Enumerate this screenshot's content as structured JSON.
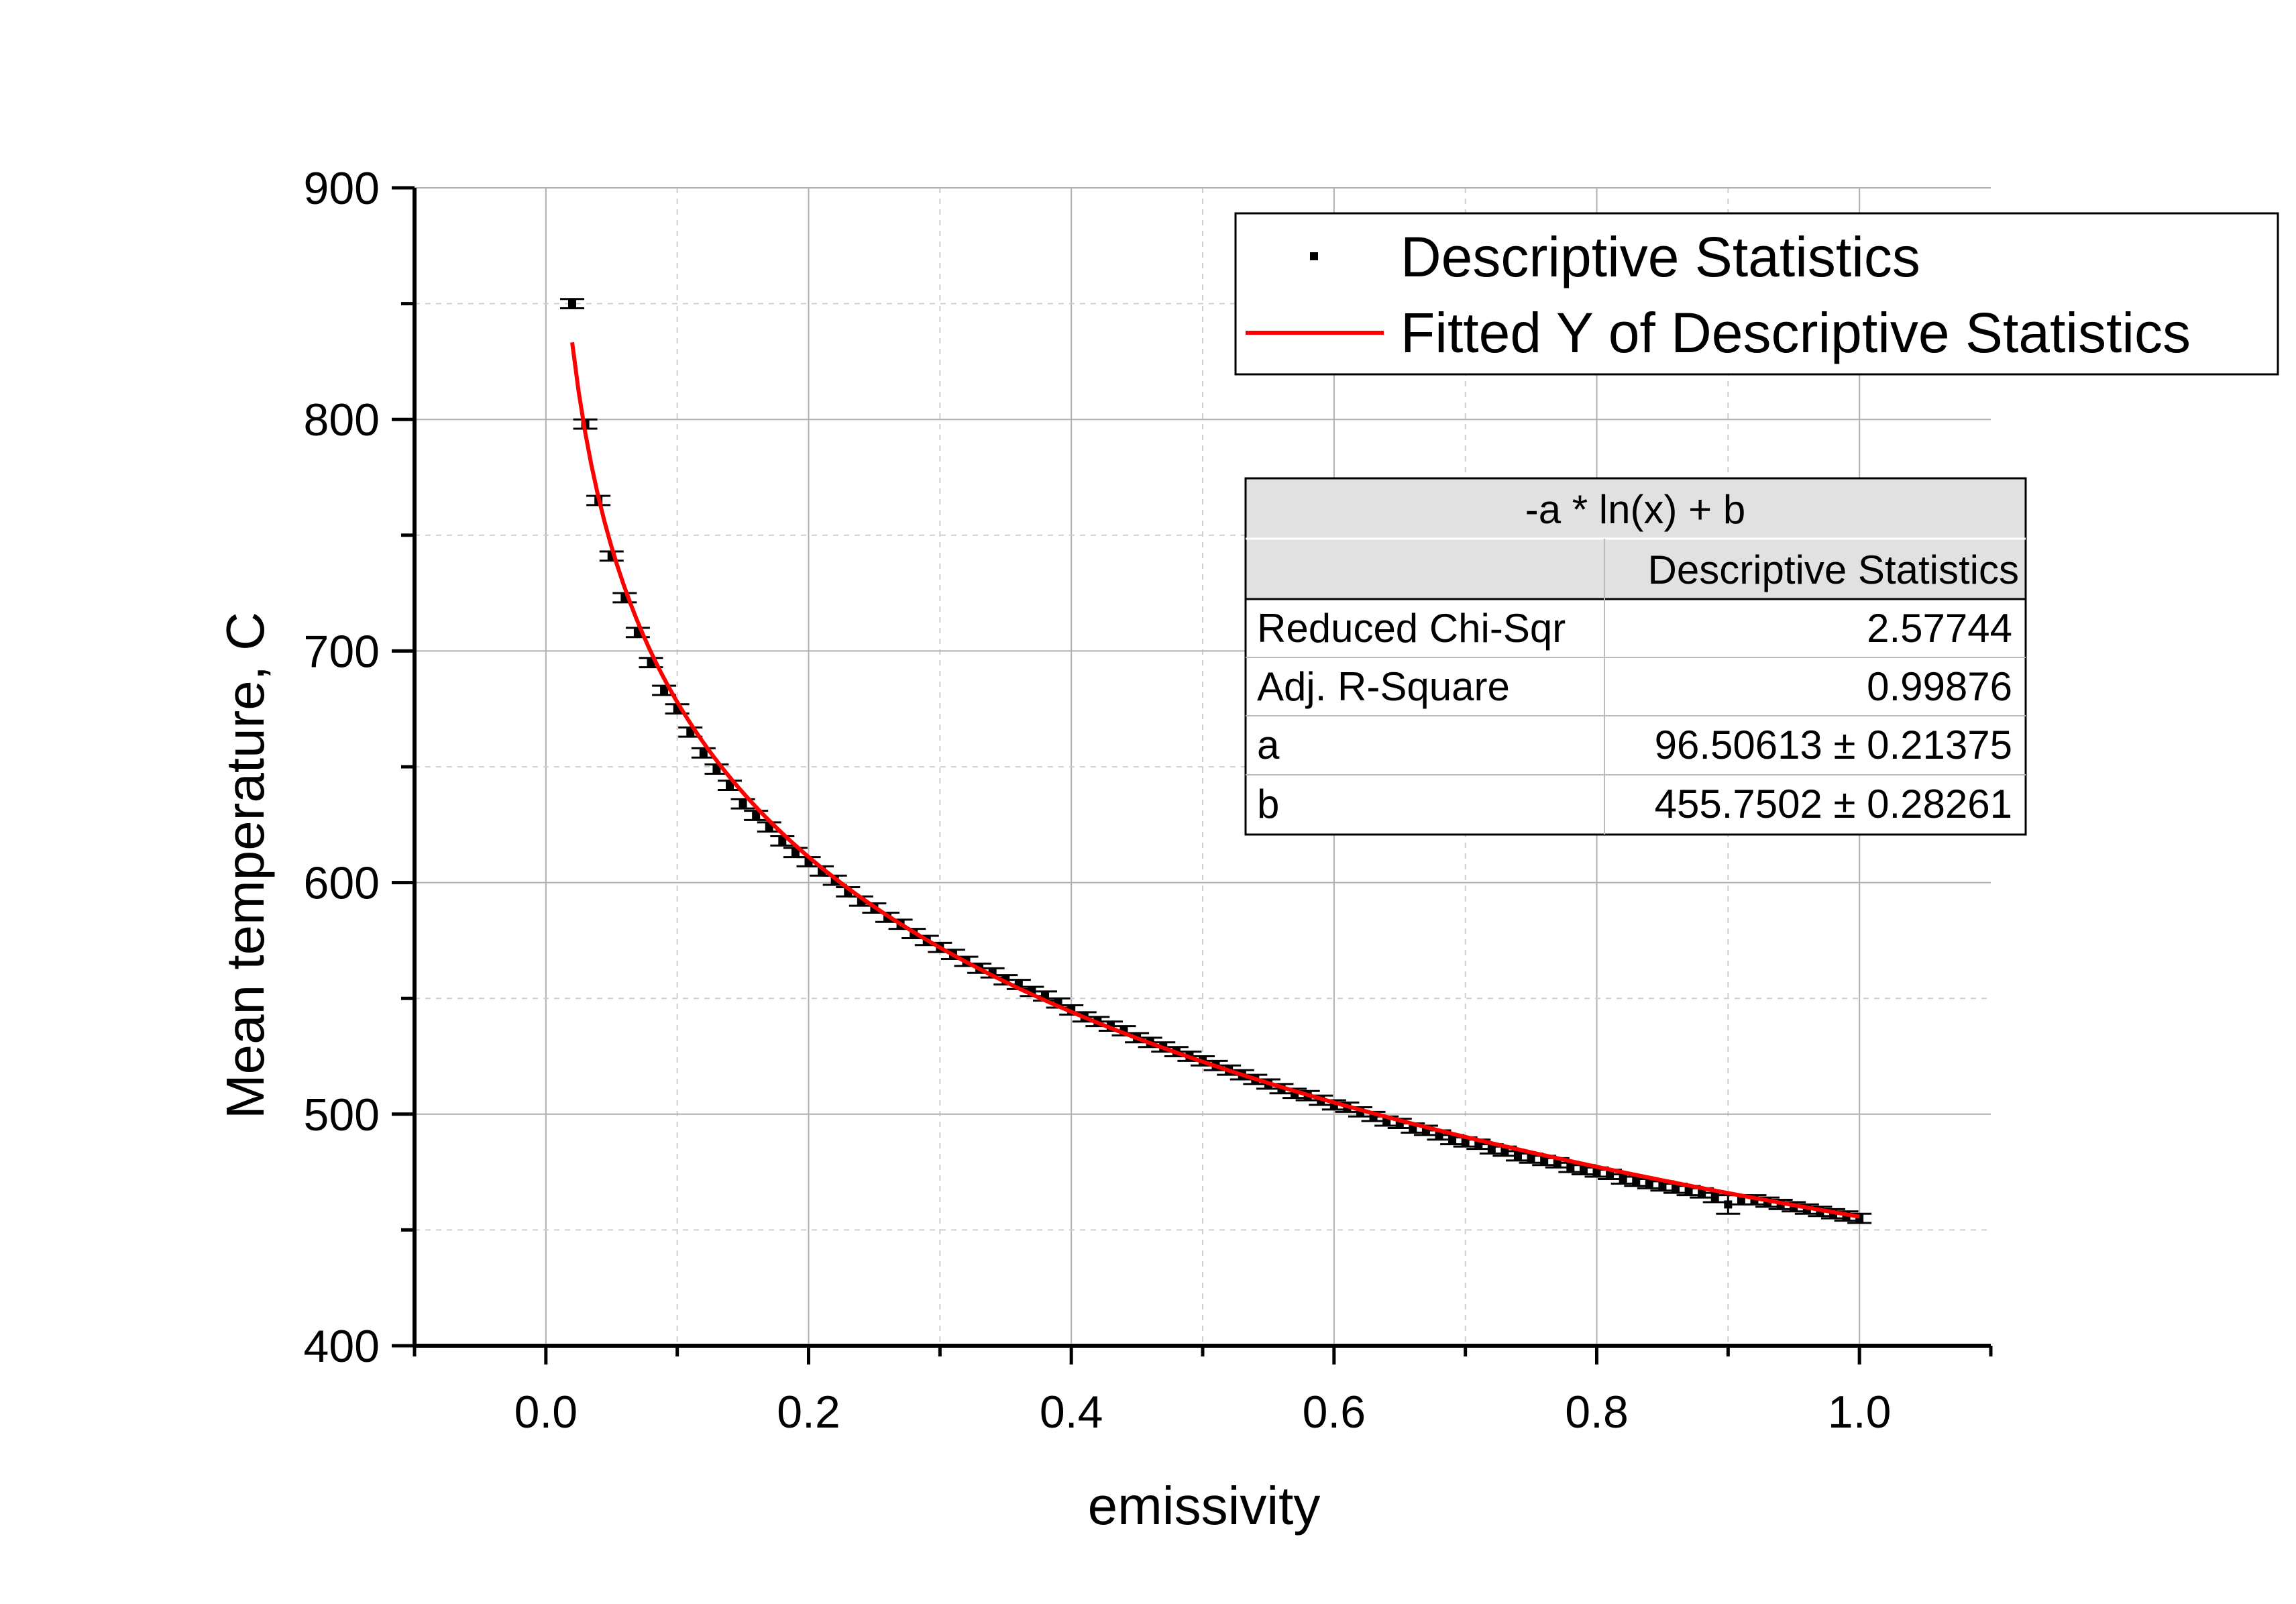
{
  "chart_data": {
    "type": "scatter",
    "xlabel": "emissivity",
    "ylabel": "Mean temperature, C",
    "xlim": [
      -0.1,
      1.1
    ],
    "ylim": [
      400,
      900
    ],
    "xticks": [
      "0.0",
      "0.2",
      "0.4",
      "0.6",
      "0.8",
      "1.0"
    ],
    "yticks": [
      "400",
      "500",
      "600",
      "700",
      "800",
      "900"
    ],
    "grid": true,
    "legend": {
      "placement": "top-right",
      "entries": [
        "Descriptive Statistics",
        "Fitted Y of Descriptive Statistics"
      ]
    },
    "series": [
      {
        "name": "Descriptive Statistics",
        "color": "#000000",
        "x": [
          0.02,
          0.03,
          0.04,
          0.05,
          0.06,
          0.07,
          0.08,
          0.09,
          0.1,
          0.11,
          0.12,
          0.13,
          0.14,
          0.15,
          0.16,
          0.17,
          0.18,
          0.19,
          0.2,
          0.21,
          0.22,
          0.23,
          0.24,
          0.25,
          0.26,
          0.27,
          0.28,
          0.29,
          0.3,
          0.31,
          0.32,
          0.33,
          0.34,
          0.35,
          0.36,
          0.37,
          0.38,
          0.39,
          0.4,
          0.41,
          0.42,
          0.43,
          0.44,
          0.45,
          0.46,
          0.47,
          0.48,
          0.49,
          0.5,
          0.51,
          0.52,
          0.53,
          0.54,
          0.55,
          0.56,
          0.57,
          0.58,
          0.59,
          0.6,
          0.61,
          0.62,
          0.63,
          0.64,
          0.65,
          0.66,
          0.67,
          0.68,
          0.69,
          0.7,
          0.71,
          0.72,
          0.73,
          0.74,
          0.75,
          0.76,
          0.77,
          0.78,
          0.79,
          0.8,
          0.81,
          0.82,
          0.83,
          0.84,
          0.85,
          0.86,
          0.87,
          0.88,
          0.89,
          0.9,
          0.91,
          0.92,
          0.93,
          0.94,
          0.95,
          0.96,
          0.97,
          0.98,
          0.99,
          1.0
        ],
        "y": [
          850,
          798,
          765,
          741,
          723,
          708,
          695,
          683,
          675,
          665,
          656,
          649,
          642,
          634,
          629,
          624,
          618,
          613,
          609,
          605,
          601,
          596,
          592,
          589,
          585,
          582,
          578,
          575,
          572,
          569,
          566,
          563,
          561,
          558,
          556,
          553,
          551,
          548,
          545,
          542,
          540,
          538,
          536,
          533,
          531,
          529,
          527,
          525,
          523,
          521,
          519,
          517,
          515,
          513,
          511,
          509,
          508,
          506,
          504,
          503,
          501,
          499,
          497,
          496,
          494,
          493,
          491,
          489,
          488,
          487,
          485,
          484,
          482,
          481,
          480,
          479,
          477,
          476,
          475,
          474,
          472,
          471,
          470,
          469,
          468,
          467,
          466,
          464,
          461,
          463,
          463,
          462,
          461,
          460,
          459,
          458,
          457,
          456,
          455
        ],
        "error": 2
      },
      {
        "name": "Fitted Y of Descriptive Statistics",
        "color": "#ff0000",
        "formula": "-a * ln(x) + b",
        "a": 96.50613,
        "b": 455.7502,
        "xrange": [
          0.02,
          1.0
        ]
      }
    ],
    "fit_table": {
      "title": "-a * ln(x) + b",
      "column_header": "Descriptive Statistics",
      "rows": [
        {
          "label": "Reduced Chi-Sqr",
          "value": "2.57744"
        },
        {
          "label": "Adj. R-Square",
          "value": "0.99876"
        },
        {
          "label": "a",
          "value": "96.50613 ± 0.21375"
        },
        {
          "label": "b",
          "value": "455.7502 ± 0.28261"
        }
      ]
    }
  }
}
